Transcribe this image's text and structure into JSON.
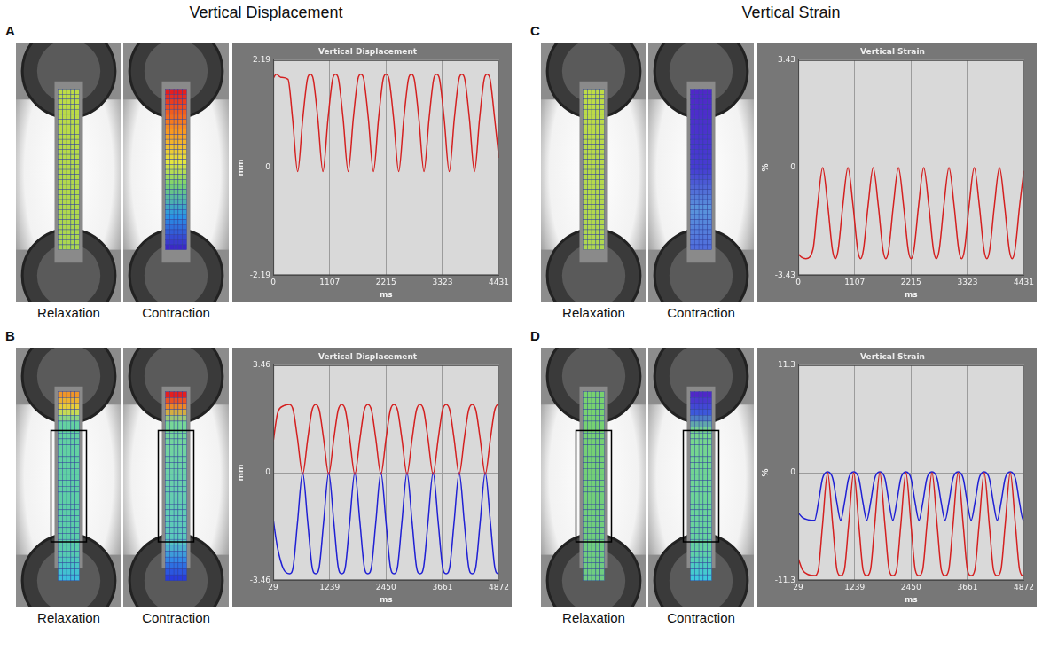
{
  "column_titles": [
    "Vertical Displacement",
    "Vertical Strain"
  ],
  "chart_data": [
    {
      "panel": "A",
      "image_labels": [
        "Relaxation",
        "Contraction"
      ],
      "type": "line",
      "title": "Vertical Displacement",
      "x_label": "ms",
      "y_label": "mm",
      "xlim": [
        0,
        4431
      ],
      "xticks": [
        0,
        1107,
        2215,
        3323,
        4431
      ],
      "ylim": [
        -2.19,
        2.19
      ],
      "yticks": [
        -2.19,
        0,
        2.19
      ],
      "grid": true,
      "series": [
        {
          "color": "#d42020",
          "x": [
            0,
            60,
            150,
            290,
            380,
            480,
            580,
            670,
            728,
            786,
            876,
            976,
            1076,
            1166,
            1224,
            1282,
            1372,
            1472,
            1572,
            1662,
            1720,
            1778,
            1868,
            1968,
            2068,
            2158,
            2216,
            2274,
            2364,
            2464,
            2564,
            2654,
            2712,
            2770,
            2860,
            2960,
            3060,
            3150,
            3208,
            3266,
            3356,
            3456,
            3556,
            3646,
            3704,
            3762,
            3852,
            3952,
            4052,
            4142,
            4200,
            4258,
            4348,
            4431
          ],
          "values": [
            1.82,
            1.9,
            1.84,
            1.8,
            1.0,
            -0.08,
            1.0,
            1.8,
            1.9,
            1.8,
            1.0,
            -0.08,
            1.0,
            1.8,
            1.9,
            1.8,
            1.0,
            -0.08,
            1.0,
            1.8,
            1.9,
            1.8,
            1.0,
            -0.08,
            1.0,
            1.8,
            1.9,
            1.8,
            1.0,
            -0.08,
            1.0,
            1.8,
            1.9,
            1.8,
            1.0,
            -0.08,
            1.0,
            1.8,
            1.9,
            1.8,
            1.0,
            -0.08,
            1.0,
            1.8,
            1.9,
            1.8,
            1.0,
            -0.08,
            1.0,
            1.8,
            1.9,
            1.8,
            1.0,
            0.2
          ]
        }
      ]
    },
    {
      "panel": "B",
      "image_labels": [
        "Relaxation",
        "Contraction"
      ],
      "type": "line",
      "title": "Vertical Displacement",
      "x_label": "ms",
      "y_label": "mm",
      "xlim": [
        29,
        4872
      ],
      "xticks": [
        29,
        1239,
        2450,
        3661,
        4872
      ],
      "ylim": [
        -3.46,
        3.46
      ],
      "yticks": [
        -3.46,
        0,
        3.46
      ],
      "grid": true,
      "series": [
        {
          "color": "#d42020",
          "x": [
            29,
            120,
            250,
            380,
            460,
            550,
            660,
            770,
            860,
            940,
            1020,
            1110,
            1220,
            1330,
            1420,
            1500,
            1580,
            1670,
            1780,
            1890,
            1980,
            2060,
            2140,
            2230,
            2340,
            2450,
            2540,
            2620,
            2700,
            2790,
            2900,
            3010,
            3100,
            3180,
            3260,
            3350,
            3460,
            3570,
            3660,
            3740,
            3820,
            3910,
            4020,
            4130,
            4220,
            4300,
            4380,
            4470,
            4580,
            4690,
            4780,
            4860,
            4872
          ],
          "values": [
            1.0,
            1.9,
            2.15,
            2.2,
            2.0,
            1.1,
            -0.05,
            1.1,
            2.0,
            2.2,
            2.0,
            1.1,
            -0.05,
            1.1,
            2.0,
            2.2,
            2.0,
            1.1,
            -0.05,
            1.1,
            2.0,
            2.2,
            2.0,
            1.1,
            -0.05,
            1.1,
            2.0,
            2.2,
            2.0,
            1.1,
            -0.05,
            1.1,
            2.0,
            2.2,
            2.0,
            1.1,
            -0.05,
            1.1,
            2.0,
            2.2,
            2.0,
            1.1,
            -0.05,
            1.1,
            2.0,
            2.2,
            2.0,
            1.1,
            -0.05,
            1.1,
            2.0,
            2.2,
            2.2
          ]
        },
        {
          "color": "#2020d4",
          "x": [
            29,
            120,
            250,
            380,
            460,
            550,
            660,
            770,
            860,
            940,
            1020,
            1110,
            1220,
            1330,
            1420,
            1500,
            1580,
            1670,
            1780,
            1890,
            1980,
            2060,
            2140,
            2230,
            2340,
            2450,
            2540,
            2620,
            2700,
            2790,
            2900,
            3010,
            3100,
            3180,
            3260,
            3350,
            3460,
            3570,
            3660,
            3740,
            3820,
            3910,
            4020,
            4130,
            4220,
            4300,
            4380,
            4470,
            4580,
            4690,
            4780,
            4860,
            4872
          ],
          "values": [
            -1.5,
            -2.4,
            -3.1,
            -3.25,
            -3.0,
            -1.6,
            0.0,
            -1.6,
            -3.0,
            -3.25,
            -3.0,
            -1.6,
            0.0,
            -1.6,
            -3.0,
            -3.25,
            -3.0,
            -1.6,
            0.0,
            -1.6,
            -3.0,
            -3.25,
            -3.0,
            -1.6,
            0.0,
            -1.6,
            -3.0,
            -3.25,
            -3.0,
            -1.6,
            0.0,
            -1.6,
            -3.0,
            -3.25,
            -3.0,
            -1.6,
            0.0,
            -1.6,
            -3.0,
            -3.25,
            -3.0,
            -1.6,
            0.0,
            -1.6,
            -3.0,
            -3.25,
            -3.0,
            -1.6,
            0.0,
            -1.6,
            -3.0,
            -3.25,
            -3.25
          ]
        }
      ]
    },
    {
      "panel": "C",
      "image_labels": [
        "Relaxation",
        "Contraction"
      ],
      "type": "line",
      "title": "Vertical Strain",
      "x_label": "ms",
      "y_label": "%",
      "xlim": [
        0,
        4431
      ],
      "xticks": [
        0,
        1107,
        2215,
        3323,
        4431
      ],
      "ylim": [
        -3.43,
        3.43
      ],
      "yticks": [
        -3.43,
        0,
        3.43
      ],
      "grid": true,
      "series": [
        {
          "color": "#d42020",
          "x": [
            0,
            60,
            150,
            290,
            380,
            480,
            580,
            670,
            728,
            786,
            876,
            976,
            1076,
            1166,
            1224,
            1282,
            1372,
            1472,
            1572,
            1662,
            1720,
            1778,
            1868,
            1968,
            2068,
            2158,
            2216,
            2274,
            2364,
            2464,
            2564,
            2654,
            2712,
            2770,
            2860,
            2960,
            3060,
            3150,
            3208,
            3266,
            3356,
            3456,
            3556,
            3646,
            3704,
            3762,
            3852,
            3952,
            4052,
            4142,
            4200,
            4258,
            4348,
            4431
          ],
          "values": [
            -2.75,
            -2.85,
            -2.9,
            -2.6,
            -1.2,
            0.0,
            -1.2,
            -2.6,
            -2.9,
            -2.6,
            -1.2,
            0.0,
            -1.2,
            -2.6,
            -2.9,
            -2.6,
            -1.2,
            0.0,
            -1.2,
            -2.6,
            -2.9,
            -2.6,
            -1.2,
            0.0,
            -1.2,
            -2.6,
            -2.9,
            -2.6,
            -1.2,
            0.0,
            -1.2,
            -2.6,
            -2.9,
            -2.6,
            -1.2,
            0.0,
            -1.2,
            -2.6,
            -2.9,
            -2.6,
            -1.2,
            0.0,
            -1.2,
            -2.6,
            -2.9,
            -2.6,
            -1.2,
            0.0,
            -1.2,
            -2.6,
            -2.9,
            -2.6,
            -1.2,
            -0.1
          ]
        }
      ]
    },
    {
      "panel": "D",
      "image_labels": [
        "Relaxation",
        "Contraction"
      ],
      "type": "line",
      "title": "Vertical Strain",
      "x_label": "ms",
      "y_label": "%",
      "xlim": [
        29,
        4872
      ],
      "xticks": [
        29,
        1239,
        2450,
        3661,
        4872
      ],
      "ylim": [
        -11.3,
        11.3
      ],
      "yticks": [
        -11.3,
        0,
        11.3
      ],
      "grid": true,
      "series": [
        {
          "color": "#d42020",
          "x": [
            29,
            120,
            250,
            380,
            460,
            550,
            660,
            770,
            860,
            940,
            1020,
            1110,
            1220,
            1330,
            1420,
            1500,
            1580,
            1670,
            1780,
            1890,
            1980,
            2060,
            2140,
            2230,
            2340,
            2450,
            2540,
            2620,
            2700,
            2790,
            2900,
            3010,
            3100,
            3180,
            3260,
            3350,
            3460,
            3570,
            3660,
            3740,
            3820,
            3910,
            4020,
            4130,
            4220,
            4300,
            4380,
            4470,
            4580,
            4690,
            4780,
            4860,
            4872
          ],
          "values": [
            -9.0,
            -10.2,
            -10.7,
            -10.8,
            -10.2,
            -5.5,
            0.0,
            -5.5,
            -10.2,
            -10.8,
            -10.2,
            -5.5,
            0.0,
            -5.5,
            -10.2,
            -10.8,
            -10.2,
            -5.5,
            0.0,
            -5.5,
            -10.2,
            -10.8,
            -10.2,
            -5.5,
            0.0,
            -5.5,
            -10.2,
            -10.8,
            -10.2,
            -5.5,
            0.0,
            -5.5,
            -10.2,
            -10.8,
            -10.2,
            -5.5,
            0.0,
            -5.5,
            -10.2,
            -10.8,
            -10.2,
            -5.5,
            0.0,
            -5.5,
            -10.2,
            -10.8,
            -10.2,
            -5.5,
            0.0,
            -5.5,
            -10.2,
            -10.8,
            -10.8
          ]
        },
        {
          "color": "#2020d4",
          "x": [
            29,
            120,
            250,
            380,
            460,
            550,
            660,
            770,
            860,
            940,
            1020,
            1110,
            1220,
            1330,
            1420,
            1500,
            1580,
            1670,
            1780,
            1890,
            1980,
            2060,
            2140,
            2230,
            2340,
            2450,
            2540,
            2620,
            2700,
            2790,
            2900,
            3010,
            3100,
            3180,
            3260,
            3350,
            3460,
            3570,
            3660,
            3740,
            3820,
            3910,
            4020,
            4130,
            4220,
            4300,
            4380,
            4470,
            4580,
            4690,
            4780,
            4860,
            4872
          ],
          "values": [
            -4.2,
            -4.7,
            -4.95,
            -5.0,
            -3.2,
            -0.6,
            0.1,
            -0.6,
            -3.2,
            -5.0,
            -3.2,
            -0.6,
            0.1,
            -0.6,
            -3.2,
            -5.0,
            -3.2,
            -0.6,
            0.1,
            -0.6,
            -3.2,
            -5.0,
            -3.2,
            -0.6,
            0.1,
            -0.6,
            -3.2,
            -5.0,
            -3.2,
            -0.6,
            0.1,
            -0.6,
            -3.2,
            -5.0,
            -3.2,
            -0.6,
            0.1,
            -0.6,
            -3.2,
            -5.0,
            -3.2,
            -0.6,
            0.1,
            -0.6,
            -3.2,
            -5.0,
            -3.2,
            -0.6,
            0.1,
            -0.6,
            -3.2,
            -5.0,
            -5.0
          ]
        }
      ]
    }
  ]
}
